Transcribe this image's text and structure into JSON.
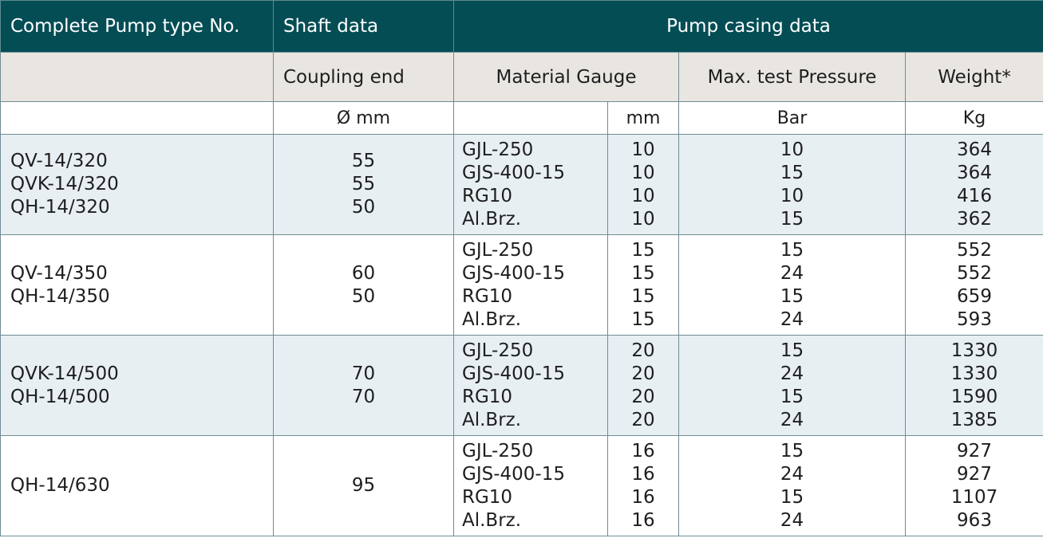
{
  "header": {
    "col_type": "Complete Pump type No.",
    "col_shaft": "Shaft data",
    "col_casing": "Pump casing data"
  },
  "subheader": {
    "coupling": "Coupling end",
    "material_gauge": "Material Gauge",
    "max_pressure": "Max. test Pressure",
    "weight": "Weight*"
  },
  "units": {
    "shaft": "Ø mm",
    "gauge": "mm",
    "pressure": "Bar",
    "weight": "Kg"
  },
  "groups": [
    {
      "types": [
        "QV-14/320",
        "QVK-14/320",
        "QH-14/320"
      ],
      "shaft": [
        "55",
        "55",
        "50"
      ],
      "materials": [
        "GJL-250",
        "GJS-400-15",
        "RG10",
        "Al.Brz."
      ],
      "gauge": [
        "10",
        "10",
        "10",
        "10"
      ],
      "pressure": [
        "10",
        "15",
        "10",
        "15"
      ],
      "weight": [
        "364",
        "364",
        "416",
        "362"
      ]
    },
    {
      "types": [
        "QV-14/350",
        "QH-14/350"
      ],
      "shaft": [
        "60",
        "50"
      ],
      "materials": [
        "GJL-250",
        "GJS-400-15",
        "RG10",
        "Al.Brz."
      ],
      "gauge": [
        "15",
        "15",
        "15",
        "15"
      ],
      "pressure": [
        "15",
        "24",
        "15",
        "24"
      ],
      "weight": [
        "552",
        "552",
        "659",
        "593"
      ]
    },
    {
      "types": [
        "QVK-14/500",
        "QH-14/500"
      ],
      "shaft": [
        "70",
        "70"
      ],
      "materials": [
        "GJL-250",
        "GJS-400-15",
        "RG10",
        "Al.Brz."
      ],
      "gauge": [
        "20",
        "20",
        "20",
        "20"
      ],
      "pressure": [
        "15",
        "24",
        "15",
        "24"
      ],
      "weight": [
        "1330",
        "1330",
        "1590",
        "1385"
      ]
    },
    {
      "types": [
        "QH-14/630"
      ],
      "shaft": [
        "95"
      ],
      "materials": [
        "GJL-250",
        "GJS-400-15",
        "RG10",
        "Al.Brz."
      ],
      "gauge": [
        "16",
        "16",
        "16",
        "16"
      ],
      "pressure": [
        "15",
        "24",
        "15",
        "24"
      ],
      "weight": [
        "927",
        "927",
        "1107",
        "963"
      ]
    }
  ]
}
